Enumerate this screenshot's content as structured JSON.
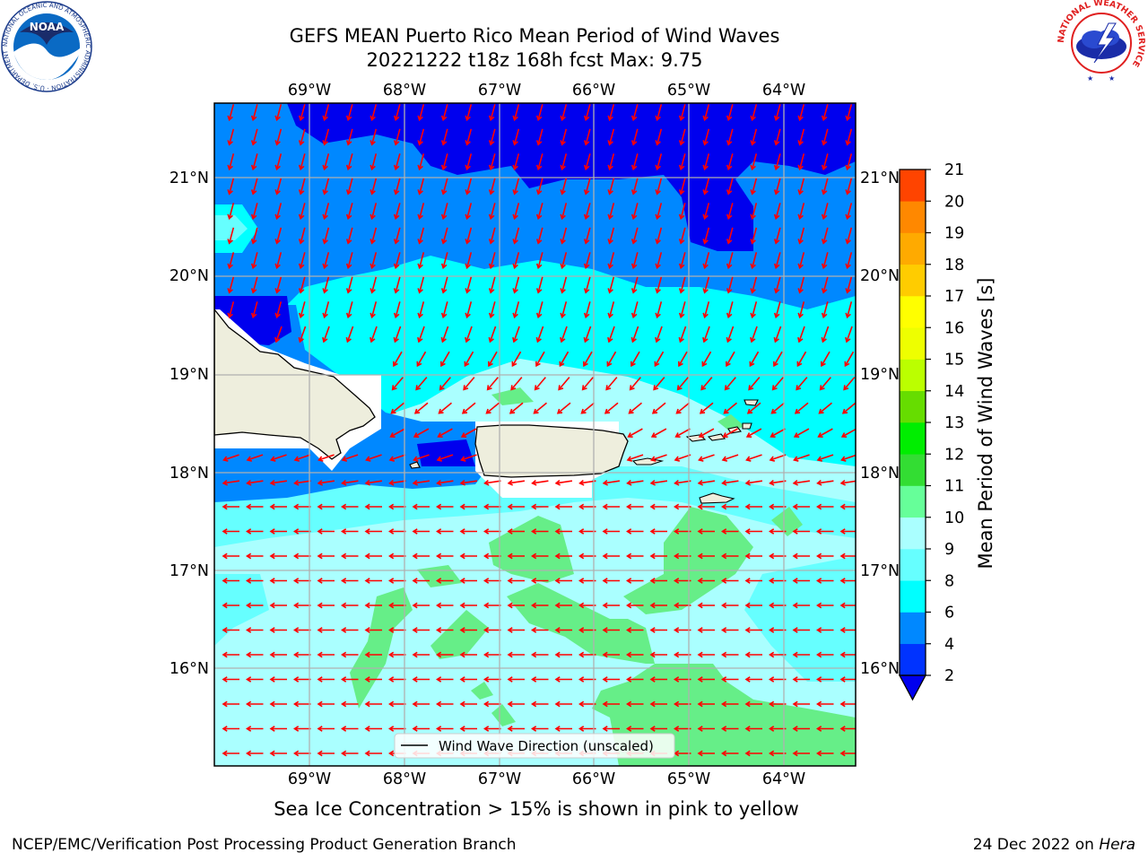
{
  "header": {
    "title_line1": "GEFS MEAN Puerto Rico Mean Period of Wind Waves",
    "title_line2": "20221222 t18z 168h fcst   Max: 9.75"
  },
  "logos": {
    "noaa": {
      "text": "NOAA",
      "ring_text": "NATIONAL OCEANIC AND ATMOSPHERIC ADMINISTRATION · U.S. DEPARTMENT OF COMMERCE ·"
    },
    "nws": {
      "ring_text": "NATIONAL WEATHER SERVICE"
    }
  },
  "map": {
    "lon_labels": [
      "69°W",
      "68°W",
      "67°W",
      "66°W",
      "65°W",
      "64°W"
    ],
    "lat_labels": [
      "21°N",
      "20°N",
      "19°N",
      "18°N",
      "17°N",
      "16°N"
    ],
    "legend_label": "Wind Wave Direction (unscaled)",
    "arrow_color": "#ff0000",
    "land_color": "#eeeedd"
  },
  "colorbar": {
    "label": "Mean Period of Wind Waves [s]",
    "ticks": [
      "2",
      "4",
      "6",
      "8",
      "9",
      "10",
      "11",
      "12",
      "13",
      "14",
      "15",
      "16",
      "17",
      "18",
      "19",
      "20",
      "21"
    ],
    "colors": [
      "#0033ff",
      "#0088ff",
      "#00ffff",
      "#66ffff",
      "#aaffff",
      "#66ff99",
      "#33dd33",
      "#00ee00",
      "#66dd00",
      "#bbff00",
      "#eeff00",
      "#ffff00",
      "#ffcc00",
      "#ffaa00",
      "#ff8800",
      "#ff4400",
      "#ff0000"
    ],
    "under_color": "#0000ee"
  },
  "caption": "Sea Ice Concentration > 15% is shown in pink to yellow",
  "footer": {
    "left": "NCEP/EMC/Verification Post Processing Product Generation Branch",
    "right_prefix": "24 Dec 2022 on ",
    "right_host": "Hera"
  }
}
